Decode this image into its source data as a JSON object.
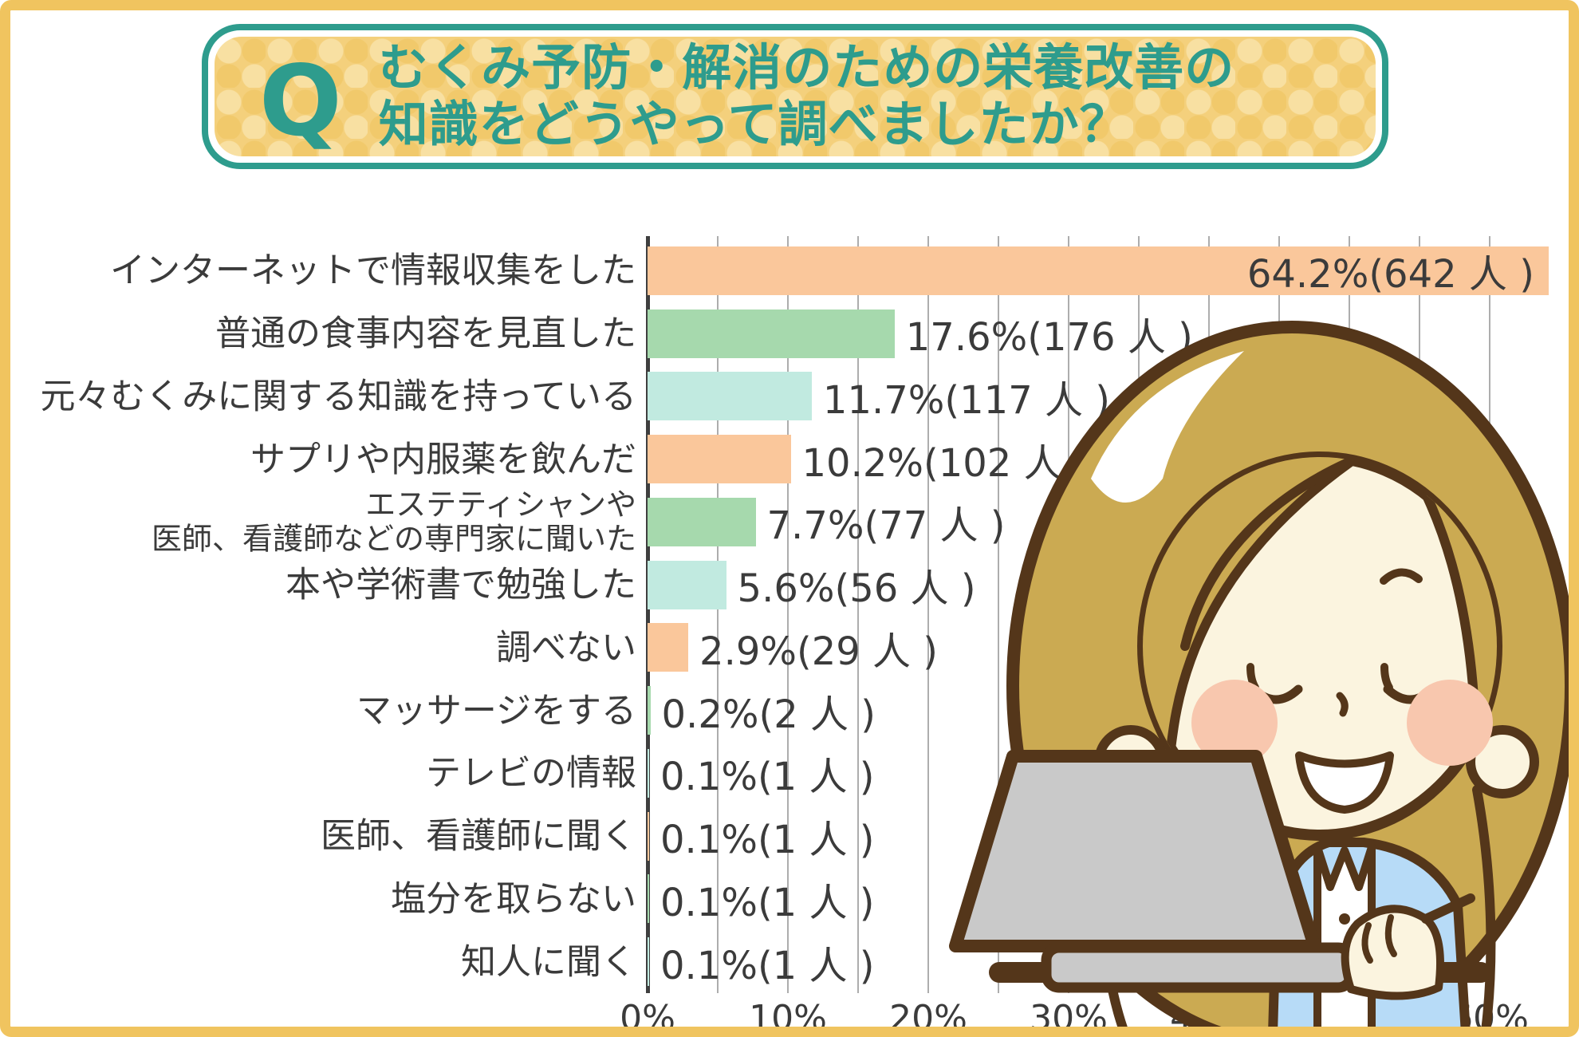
{
  "title": {
    "q": "Q",
    "line1": "むくみ予防・解消のための栄養改善の",
    "line2": "知識をどうやって調べましたか？"
  },
  "chart_data": {
    "type": "bar",
    "orientation": "horizontal",
    "title": "むくみ予防・解消のための栄養改善の知識をどうやって調べましたか？",
    "categories": [
      "インターネットで情報収集をした",
      "普通の食事内容を見直した",
      "元々むくみに関する知識を持っている",
      "サプリや内服薬を飲んだ",
      "エステティシャンや\n医師、看護師などの専門家に聞いた",
      "本や学術書で勉強した",
      "調べない",
      "マッサージをする",
      "テレビの情報",
      "医師、看護師に聞く",
      "塩分を取らない",
      "知人に聞く"
    ],
    "values": [
      64.2,
      17.6,
      11.7,
      10.2,
      7.7,
      5.6,
      2.9,
      0.2,
      0.1,
      0.1,
      0.1,
      0.1
    ],
    "counts": [
      642,
      176,
      117,
      102,
      77,
      56,
      29,
      2,
      1,
      1,
      1,
      1
    ],
    "value_labels": [
      "64.2%(642 人 )",
      "17.6%(176 人 )",
      "11.7%(117 人 )",
      "10.2%(102 人 )",
      "7.7%(77 人 )",
      "5.6%(56 人 )",
      "2.9%(29 人 )",
      "0.2%(2 人 )",
      "0.1%(1 人 )",
      "0.1%(1 人 )",
      "0.1%(1 人 )",
      "0.1%(1 人 )"
    ],
    "x_ticks": [
      "0%",
      "10%",
      "20%",
      "30%",
      "40%",
      "50%",
      "60%"
    ],
    "x_tick_values": [
      0,
      10,
      20,
      30,
      40,
      50,
      60
    ],
    "xlim": [
      0,
      64.2
    ],
    "gridline_step_pct": 5,
    "grid": true,
    "legend": "none",
    "bar_color_cycle": [
      "#FAC79B",
      "#A6D9AD",
      "#C1EAE0"
    ],
    "value_label_inside_first_bar": true,
    "unit": "人"
  },
  "colors": {
    "accent_teal": "#2E9C8D",
    "frame_gold": "#F0C45F",
    "pattern_yellow": "#F4D07C",
    "pattern_yellow_light": "#F8E0A2",
    "bar_orange": "#FAC79B",
    "bar_green": "#A6D9AD",
    "bar_cyan": "#C1EAE0",
    "gridline": "#ADADAD",
    "text": "#3B3B3B",
    "illustration_hair": "#CBAA52",
    "illustration_outline": "#54361A",
    "illustration_skin": "#FBF4DF",
    "illustration_cheek": "#F8C7AE",
    "illustration_cardigan": "#B7DBF7",
    "illustration_laptop": "#C9C9C9",
    "sparkle_yellow": "#FBC51F"
  }
}
